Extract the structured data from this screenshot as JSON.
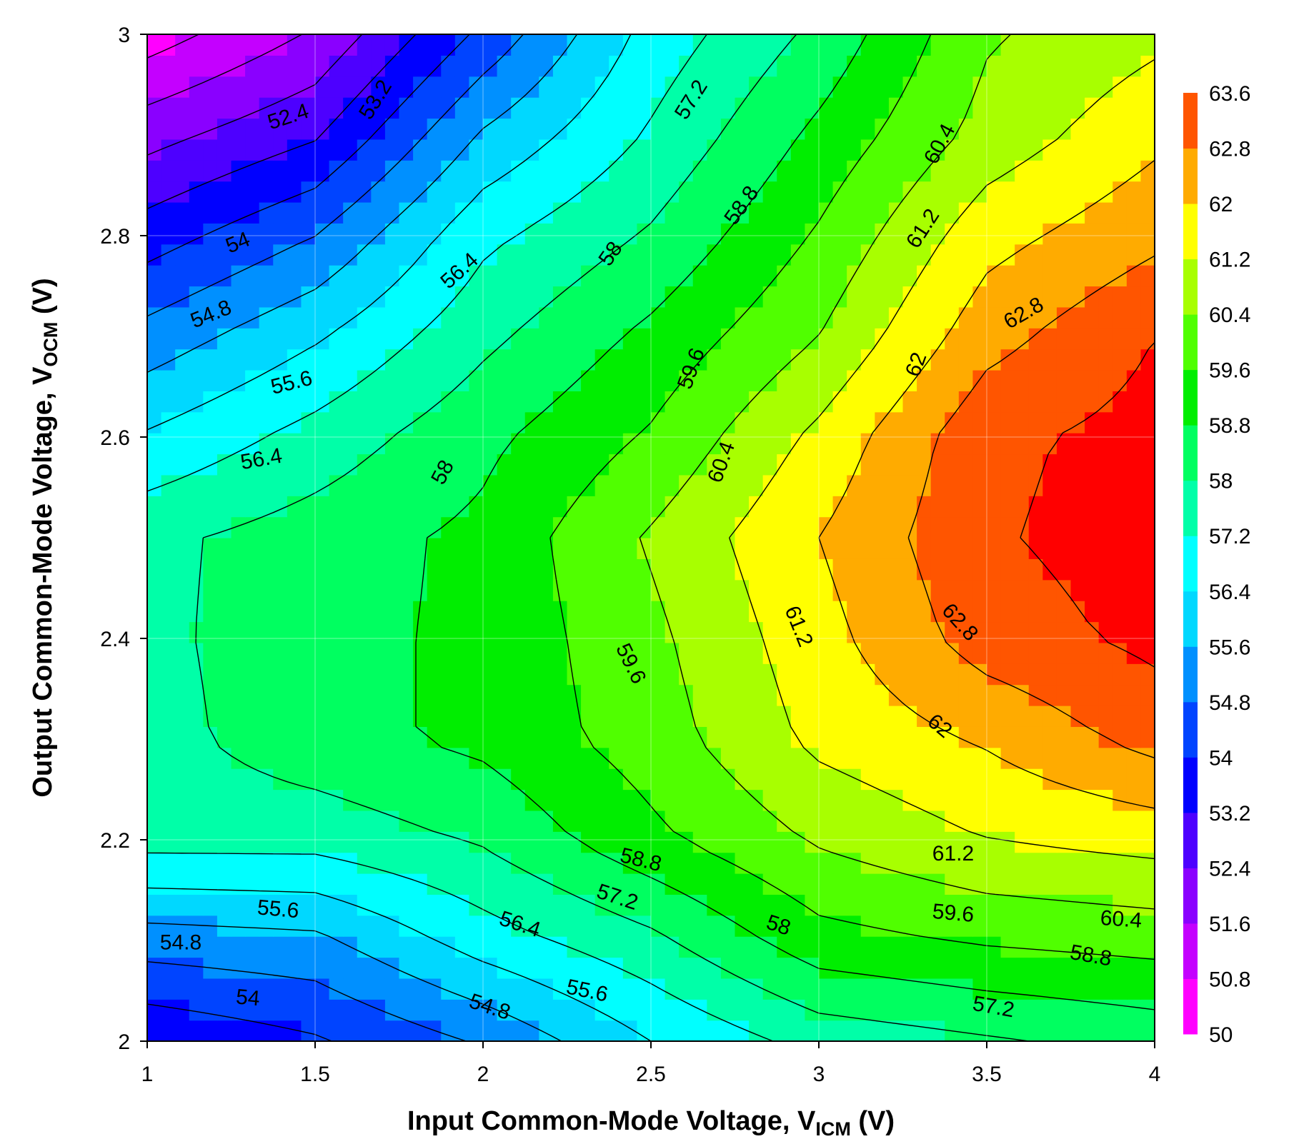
{
  "chart_data": {
    "type": "contour",
    "title": "",
    "xlabel": {
      "text": "Input Common-Mode Voltage, V",
      "subscript": "ICM",
      "unit": " (V)"
    },
    "ylabel": {
      "text": "Output Common-Mode Voltage, V",
      "subscript": "OCM",
      "unit": " (V)"
    },
    "xlim": [
      1,
      4
    ],
    "ylim": [
      2,
      3
    ],
    "xticks": [
      "1",
      "1.5",
      "2",
      "2.5",
      "3",
      "3.5",
      "4"
    ],
    "yticks": [
      "2",
      "2.2",
      "2.4",
      "2.6",
      "2.8",
      "3"
    ],
    "grid": true,
    "colorbar": {
      "position": "right",
      "levels": [
        50,
        50.8,
        51.6,
        52.4,
        53.2,
        54,
        54.8,
        55.6,
        56.4,
        57.2,
        58,
        58.8,
        59.6,
        60.4,
        61.2,
        62,
        62.8,
        63.6
      ],
      "labels": [
        "50",
        "50.8",
        "51.6",
        "52.4",
        "53.2",
        "54",
        "54.8",
        "55.6",
        "56.4",
        "57.2",
        "58",
        "58.8",
        "59.6",
        "60.4",
        "61.2",
        "62",
        "62.8",
        "63.6"
      ],
      "colors": [
        "#ff00ff",
        "#c400ff",
        "#8a00ff",
        "#4d00ff",
        "#0000ff",
        "#0044ff",
        "#0090ff",
        "#00d8ff",
        "#00ffff",
        "#00ffa8",
        "#00ff60",
        "#00ee00",
        "#50ff00",
        "#a8ff00",
        "#ffff00",
        "#ffab00",
        "#ff5500",
        "#ff0000"
      ]
    },
    "z_grid": {
      "x": [
        1,
        1.5,
        2,
        2.5,
        3,
        3.5,
        4
      ],
      "y": [
        2,
        2.1,
        2.2,
        2.3,
        2.4,
        2.5,
        2.6,
        2.7,
        2.8,
        2.9,
        3
      ],
      "z": [
        [
          53.3,
          53.9,
          54.9,
          56.4,
          57.5,
          57.9,
          58.3
        ],
        [
          55.2,
          55.4,
          56.8,
          57.8,
          59.3,
          59.7,
          59.9
        ],
        [
          57.5,
          57.5,
          58.1,
          59.4,
          60.5,
          61.2,
          61.5
        ],
        [
          57.7,
          58.5,
          59.0,
          60.0,
          61.4,
          62.1,
          63.1
        ],
        [
          57.8,
          58.5,
          59.0,
          60.2,
          61.7,
          63.2,
          63.8
        ],
        [
          57.8,
          58.4,
          59.0,
          60.5,
          62.0,
          63.5,
          64.0
        ],
        [
          56.5,
          57.5,
          58.6,
          59.7,
          61.4,
          63.4,
          63.9
        ],
        [
          55.1,
          56.3,
          57.8,
          59.0,
          60.4,
          62.5,
          63.6
        ],
        [
          53.6,
          54.8,
          57.0,
          58.1,
          59.7,
          61.7,
          62.6
        ],
        [
          52.1,
          53.1,
          55.7,
          57.3,
          59.0,
          60.7,
          61.8
        ],
        [
          50.4,
          51.7,
          54.2,
          56.7,
          58.2,
          60.3,
          61.0
        ]
      ]
    },
    "contour_labels": [
      {
        "text": "52.4",
        "x": 1.42,
        "y": 2.918,
        "angle": -18,
        "color": "#ffffff"
      },
      {
        "text": "53.2",
        "x": 1.68,
        "y": 2.935,
        "angle": -58,
        "color": "#000000"
      },
      {
        "text": "54",
        "x": 1.27,
        "y": 2.793,
        "angle": -22,
        "color": "#000000"
      },
      {
        "text": "54.8",
        "x": 1.19,
        "y": 2.722,
        "angle": -22,
        "color": "#000000"
      },
      {
        "text": "55.6",
        "x": 1.43,
        "y": 2.654,
        "angle": -14,
        "color": "#000000"
      },
      {
        "text": "56.4",
        "x": 1.34,
        "y": 2.578,
        "angle": -10,
        "color": "#000000"
      },
      {
        "text": "56.4",
        "x": 1.93,
        "y": 2.765,
        "angle": -42,
        "color": "#000000"
      },
      {
        "text": "57.2",
        "x": 2.62,
        "y": 2.935,
        "angle": -58,
        "color": "#000000"
      },
      {
        "text": "58",
        "x": 2.38,
        "y": 2.782,
        "angle": -55,
        "color": "#000000"
      },
      {
        "text": "58.8",
        "x": 2.77,
        "y": 2.83,
        "angle": -54,
        "color": "#000000"
      },
      {
        "text": "58",
        "x": 1.88,
        "y": 2.565,
        "angle": -62,
        "color": "#000000"
      },
      {
        "text": "59.6",
        "x": 2.62,
        "y": 2.668,
        "angle": -70,
        "color": "#000000"
      },
      {
        "text": "60.4",
        "x": 2.71,
        "y": 2.575,
        "angle": -70,
        "color": "#000000"
      },
      {
        "text": "60.4",
        "x": 3.36,
        "y": 2.891,
        "angle": -62,
        "color": "#000000"
      },
      {
        "text": "61.2",
        "x": 3.31,
        "y": 2.807,
        "angle": -57,
        "color": "#000000"
      },
      {
        "text": "62",
        "x": 3.29,
        "y": 2.672,
        "angle": -70,
        "color": "#000000"
      },
      {
        "text": "62.8",
        "x": 3.61,
        "y": 2.723,
        "angle": -30,
        "color": "#000000"
      },
      {
        "text": "61.2",
        "x": 2.94,
        "y": 2.412,
        "angle": 68,
        "color": "#000000"
      },
      {
        "text": "59.6",
        "x": 2.44,
        "y": 2.375,
        "angle": 64,
        "color": "#000000"
      },
      {
        "text": "62.8",
        "x": 3.42,
        "y": 2.416,
        "angle": 48,
        "color": "#000000"
      },
      {
        "text": "62",
        "x": 3.36,
        "y": 2.313,
        "angle": 40,
        "color": "#000000"
      },
      {
        "text": "61.2",
        "x": 3.4,
        "y": 2.186,
        "angle": 0,
        "color": "#000000"
      },
      {
        "text": "58.8",
        "x": 2.47,
        "y": 2.18,
        "angle": 14,
        "color": "#000000"
      },
      {
        "text": "60.4",
        "x": 3.9,
        "y": 2.121,
        "angle": 4,
        "color": "#000000"
      },
      {
        "text": "59.6",
        "x": 3.4,
        "y": 2.127,
        "angle": 5,
        "color": "#000000"
      },
      {
        "text": "58.8",
        "x": 3.81,
        "y": 2.085,
        "angle": 10,
        "color": "#000000"
      },
      {
        "text": "55.6",
        "x": 1.39,
        "y": 2.131,
        "angle": 5,
        "color": "#000000"
      },
      {
        "text": "54.8",
        "x": 1.1,
        "y": 2.098,
        "angle": 0,
        "color": "#000000"
      },
      {
        "text": "54",
        "x": 1.3,
        "y": 2.043,
        "angle": 5,
        "color": "#000000"
      },
      {
        "text": "56.4",
        "x": 2.11,
        "y": 2.116,
        "angle": 18,
        "color": "#000000"
      },
      {
        "text": "57.2",
        "x": 2.4,
        "y": 2.143,
        "angle": 18,
        "color": "#000000"
      },
      {
        "text": "58",
        "x": 2.88,
        "y": 2.115,
        "angle": 18,
        "color": "#000000"
      },
      {
        "text": "55.6",
        "x": 2.31,
        "y": 2.05,
        "angle": 12,
        "color": "#000000"
      },
      {
        "text": "54.8",
        "x": 2.02,
        "y": 2.034,
        "angle": 18,
        "color": "#000000"
      },
      {
        "text": "57.2",
        "x": 3.52,
        "y": 2.034,
        "angle": 10,
        "color": "#000000"
      }
    ]
  }
}
